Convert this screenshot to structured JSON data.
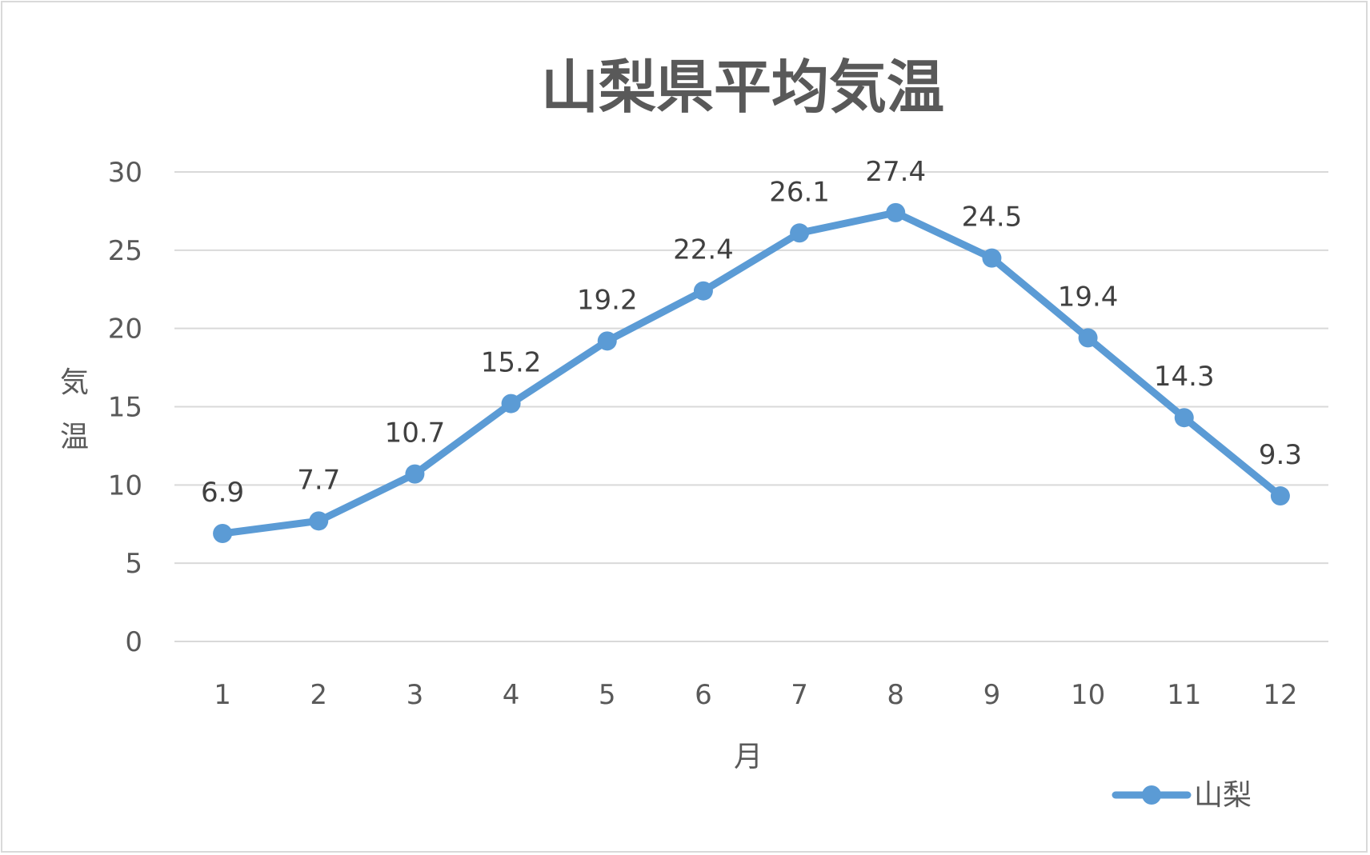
{
  "chart_data": {
    "type": "line",
    "title": "山梨県平均気温",
    "xlabel": "月",
    "ylabel": "気温",
    "categories": [
      "1",
      "2",
      "3",
      "4",
      "5",
      "6",
      "7",
      "8",
      "9",
      "10",
      "11",
      "12"
    ],
    "series": [
      {
        "name": "山梨",
        "values": [
          6.9,
          7.7,
          10.7,
          15.2,
          19.2,
          22.4,
          26.1,
          27.4,
          24.5,
          19.4,
          14.3,
          9.3
        ],
        "color": "#5b9bd5"
      }
    ],
    "ylim": [
      0,
      30
    ],
    "yticks": [
      0,
      5,
      10,
      15,
      20,
      25,
      30
    ],
    "grid": true,
    "legend": "bottom-right",
    "gridColor": "#d9d9d9"
  }
}
